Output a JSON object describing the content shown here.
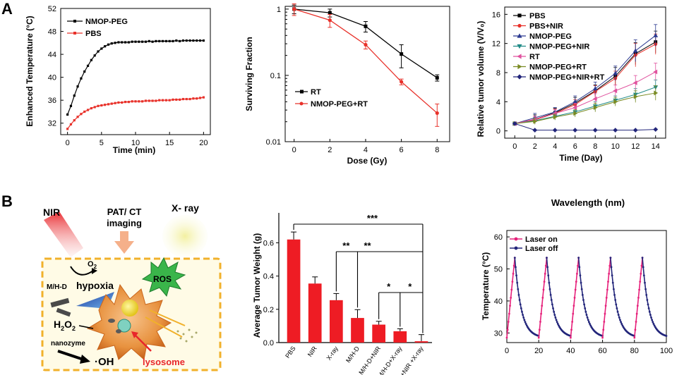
{
  "panel_labels": [
    "A",
    "B"
  ],
  "schematic": {
    "nir": "NIR",
    "imaging_line1": "PAT/ CT",
    "imaging_line2": "imaging",
    "xray": "X- ray",
    "o2": "O",
    "o2_sub": "2",
    "mhd": "M/H-D",
    "hypoxia": "hypoxia",
    "ros": "ROS",
    "h2o2": "H",
    "h2o2_sub1": "2",
    "h2o2_mid": "O",
    "h2o2_sub2": "2",
    "nanozyme": "nanozyme",
    "oh": "·OH",
    "lysosome": "lysosome"
  },
  "colors": {
    "black": "#000000",
    "red": "#e8312a",
    "blue": "#2b3990",
    "teal": "#1f8a86",
    "magenta": "#e0519e",
    "olive": "#7a8b23",
    "navy": "#22257a",
    "pink": "#e6207a",
    "bar": "#ee1c24"
  },
  "chart_data": [
    {
      "type": "line",
      "title": "",
      "xlabel": "Time (min)",
      "ylabel": "Enhanced Temperature (°C)",
      "xlim": [
        0,
        20
      ],
      "ylim": [
        30,
        52
      ],
      "xticks": [
        "0",
        "5",
        "10",
        "15",
        "20"
      ],
      "yticks": [
        "32",
        "36",
        "40",
        "44",
        "48",
        "52"
      ],
      "legend": [
        "NMOP-PEG",
        "PBS"
      ],
      "series": [
        {
          "name": "NMOP-PEG",
          "color": "#000000",
          "x": [
            0,
            0.5,
            1,
            1.5,
            2,
            2.5,
            3,
            3.5,
            4,
            4.5,
            5,
            5.5,
            6,
            6.5,
            7,
            7.5,
            8,
            8.5,
            9,
            9.5,
            10,
            10.5,
            11,
            11.5,
            12,
            12.5,
            13,
            13.5,
            14,
            14.5,
            15,
            15.5,
            16,
            16.5,
            17,
            17.5,
            18,
            18.5,
            19,
            19.5,
            20
          ],
          "y": [
            33.5,
            35.0,
            36.8,
            38.4,
            39.8,
            41.0,
            42.0,
            43.0,
            43.8,
            44.5,
            45.0,
            45.4,
            45.7,
            45.9,
            46.0,
            46.1,
            46.1,
            46.1,
            46.1,
            46.2,
            46.2,
            46.2,
            46.2,
            46.2,
            46.3,
            46.2,
            46.3,
            46.3,
            46.3,
            46.3,
            46.3,
            46.3,
            46.4,
            46.3,
            46.4,
            46.4,
            46.4,
            46.4,
            46.4,
            46.4,
            46.4
          ]
        },
        {
          "name": "PBS",
          "color": "#e8312a",
          "x": [
            0,
            0.5,
            1,
            1.5,
            2,
            2.5,
            3,
            3.5,
            4,
            4.5,
            5,
            5.5,
            6,
            6.5,
            7,
            7.5,
            8,
            8.5,
            9,
            9.5,
            10,
            10.5,
            11,
            11.5,
            12,
            12.5,
            13,
            13.5,
            14,
            14.5,
            15,
            15.5,
            16,
            16.5,
            17,
            17.5,
            18,
            18.5,
            19,
            19.5,
            20
          ],
          "y": [
            31.0,
            31.8,
            32.5,
            33.1,
            33.6,
            34.0,
            34.3,
            34.6,
            34.8,
            35.0,
            35.1,
            35.2,
            35.3,
            35.4,
            35.5,
            35.6,
            35.6,
            35.7,
            35.7,
            35.8,
            35.8,
            35.8,
            35.8,
            35.9,
            35.9,
            35.9,
            35.9,
            36.0,
            36.0,
            36.0,
            36.0,
            36.1,
            36.1,
            36.1,
            36.2,
            36.2,
            36.2,
            36.3,
            36.3,
            36.4,
            36.5
          ]
        }
      ]
    },
    {
      "type": "line",
      "title": "",
      "xlabel": "Dose (Gy)",
      "ylabel": "Surviving Fraction",
      "yscale": "log",
      "xlim": [
        -0.5,
        8.7
      ],
      "ylim": [
        0.01,
        1.1
      ],
      "xticks": [
        "0",
        "2",
        "4",
        "6",
        "8"
      ],
      "yticks": [
        "1",
        "0.1",
        "0.01"
      ],
      "legend": [
        "RT",
        "NMOP-PEG+RT"
      ],
      "series": [
        {
          "name": "RT",
          "color": "#000000",
          "x": [
            0,
            2,
            4,
            6,
            8
          ],
          "y": [
            1.0,
            0.88,
            0.55,
            0.21,
            0.092
          ],
          "err": [
            0.15,
            0.12,
            0.1,
            0.08,
            0.01
          ]
        },
        {
          "name": "NMOP-PEG+RT",
          "color": "#e8312a",
          "x": [
            0,
            2,
            4,
            6,
            8
          ],
          "y": [
            1.0,
            0.68,
            0.29,
            0.08,
            0.027
          ],
          "err": [
            0.2,
            0.15,
            0.04,
            0.008,
            0.01
          ]
        }
      ]
    },
    {
      "type": "line",
      "title": "",
      "xlabel": "Time (Day)",
      "ylabel": "Relative tumor volume (V/V₀)",
      "xlim": [
        -0.3,
        15
      ],
      "ylim": [
        -1,
        16
      ],
      "xticks": [
        "0",
        "2",
        "4",
        "6",
        "8",
        "10",
        "12",
        "14"
      ],
      "yticks": [
        "0",
        "4",
        "8",
        "12",
        "16"
      ],
      "legend": [
        "PBS",
        "PBS+NIR",
        "NMOP-PEG",
        "NMOP-PEG+NIR",
        "RT",
        "NMOP-PEG+RT",
        "NMOP-PEG+NIR+RT"
      ],
      "series": [
        {
          "name": "PBS",
          "color": "#000000",
          "marker": "square",
          "x": [
            0,
            2,
            4,
            6,
            8,
            10,
            12,
            14
          ],
          "y": [
            1,
            1.6,
            2.5,
            3.8,
            5.5,
            7.5,
            10.6,
            12.2
          ],
          "err": [
            0.2,
            0.6,
            0.6,
            0.8,
            0.8,
            1.2,
            1.5,
            1.5
          ]
        },
        {
          "name": "PBS+NIR",
          "color": "#e8312a",
          "marker": "circle",
          "x": [
            0,
            2,
            4,
            6,
            8,
            10,
            12,
            14
          ],
          "y": [
            1,
            1.5,
            2.4,
            3.6,
            5.4,
            7.2,
            10.4,
            11.9
          ],
          "err": [
            0.2,
            0.5,
            0.6,
            0.7,
            0.8,
            1.0,
            1.6,
            1.4
          ]
        },
        {
          "name": "NMOP-PEG",
          "color": "#2b3990",
          "marker": "triangle-up",
          "x": [
            0,
            2,
            4,
            6,
            8,
            10,
            12,
            14
          ],
          "y": [
            1,
            1.8,
            2.6,
            4.0,
            5.8,
            7.9,
            11.0,
            13.1
          ],
          "err": [
            0.2,
            0.6,
            0.6,
            0.8,
            0.9,
            1.0,
            1.5,
            1.5
          ]
        },
        {
          "name": "NMOP-PEG+NIR",
          "color": "#1f8a86",
          "marker": "triangle-down",
          "x": [
            0,
            2,
            4,
            6,
            8,
            10,
            12,
            14
          ],
          "y": [
            1,
            1.4,
            2.0,
            2.6,
            3.4,
            4.2,
            5.0,
            6.0
          ],
          "err": [
            0.2,
            0.4,
            0.5,
            0.5,
            0.6,
            0.6,
            0.8,
            1.0
          ]
        },
        {
          "name": "RT",
          "color": "#e0519e",
          "marker": "triangle-left",
          "x": [
            0,
            2,
            4,
            6,
            8,
            10,
            12,
            14
          ],
          "y": [
            1,
            1.6,
            2.4,
            3.2,
            4.4,
            5.5,
            6.6,
            8.1
          ],
          "err": [
            0.2,
            0.4,
            0.5,
            0.6,
            0.7,
            0.8,
            1.0,
            1.2
          ]
        },
        {
          "name": "NMOP-PEG+RT",
          "color": "#7a8b23",
          "marker": "triangle-right",
          "x": [
            0,
            2,
            4,
            6,
            8,
            10,
            12,
            14
          ],
          "y": [
            1,
            1.3,
            1.9,
            2.4,
            3.2,
            4.0,
            4.7,
            5.2
          ],
          "err": [
            0.2,
            0.4,
            0.4,
            0.5,
            0.6,
            0.6,
            0.8,
            1.0
          ]
        },
        {
          "name": "NMOP-PEG+NIR+RT",
          "color": "#22257a",
          "marker": "diamond",
          "x": [
            0,
            2,
            4,
            6,
            8,
            10,
            12,
            14
          ],
          "y": [
            1,
            0.1,
            0.1,
            0.1,
            0.1,
            0.1,
            0.1,
            0.2
          ],
          "err": [
            0.1,
            0.05,
            0.05,
            0.05,
            0.05,
            0.05,
            0.05,
            0.05
          ]
        }
      ]
    },
    {
      "type": "bar",
      "title": "",
      "xlabel": "",
      "ylabel": "Average Tumor Weight (g)",
      "ylim": [
        0,
        0.78
      ],
      "yticks": [
        "0.0",
        "0.2",
        "0.4",
        "0.6"
      ],
      "categories": [
        "PBS",
        "NIR",
        "X-ray",
        "M/H-D",
        "M/H-D+NIR",
        "M/H-D+X-ray",
        "M/H-D+NIR +X-ray"
      ],
      "values": [
        0.62,
        0.355,
        0.255,
        0.148,
        0.108,
        0.068,
        0.008
      ],
      "errors": [
        0.045,
        0.04,
        0.04,
        0.05,
        0.02,
        0.015,
        0.04
      ],
      "significance": [
        {
          "label": "***",
          "from": 0,
          "to": 6
        },
        {
          "label": "**",
          "from": 2,
          "to": 6
        },
        {
          "label": "**",
          "from": 3,
          "to": 6
        },
        {
          "label": "*",
          "from": 4,
          "to": 6
        },
        {
          "label": "*",
          "from": 5,
          "to": 6
        }
      ]
    },
    {
      "type": "line",
      "title": "Wavelength (nm)",
      "xlabel": "",
      "ylabel": "Temperature (°C)",
      "xlim": [
        0,
        100
      ],
      "ylim": [
        27,
        62
      ],
      "xticks": [
        "0",
        "20",
        "40",
        "60",
        "80",
        "100"
      ],
      "yticks": [
        "30",
        "40",
        "50",
        "60"
      ],
      "legend": [
        "Laser on",
        "Laser off"
      ],
      "cycles": 5,
      "period": 20,
      "on_duration": 5,
      "t_base": 28.5,
      "t_peak": 53.5,
      "series": [
        {
          "name": "Laser on",
          "color": "#e6207a"
        },
        {
          "name": "Laser off",
          "color": "#22257a"
        }
      ]
    }
  ]
}
